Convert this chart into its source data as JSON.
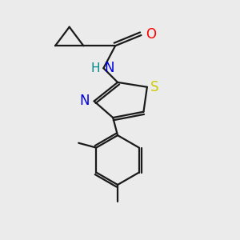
{
  "bg_color": "#ebebeb",
  "bond_color": "#1a1a1a",
  "bond_width": 1.6,
  "atom_colors": {
    "O": "#ff0000",
    "N": "#0000dd",
    "NH": "#008b8b",
    "S": "#cccc00"
  }
}
